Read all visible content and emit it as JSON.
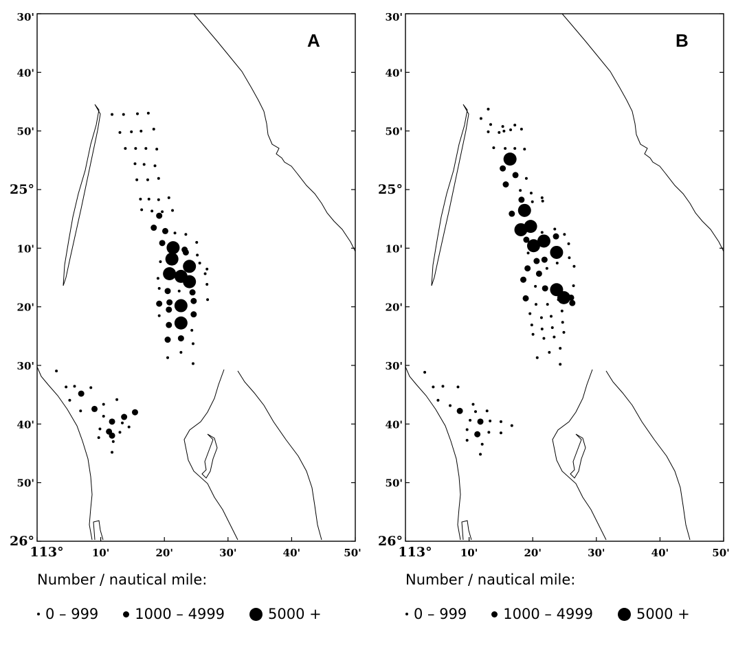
{
  "panels": [
    {
      "id": "A",
      "label": "A",
      "lat_ticks": [
        "30'",
        "40'",
        "50'",
        "25°",
        "10'",
        "20'",
        "30'",
        "40'",
        "50'",
        "26°"
      ],
      "lon_ticks": [
        "113°",
        "10'",
        "20'",
        "30'",
        "40'",
        "50'"
      ],
      "stations": [
        {
          "lon": 3,
          "lat": 37,
          "size": "small"
        },
        {
          "lon": 5.5,
          "lat": 36.8,
          "size": "small"
        },
        {
          "lon": 7,
          "lat": 36.5,
          "size": "small"
        },
        {
          "lon": 8.5,
          "lat": 37.6,
          "size": "medium"
        },
        {
          "lon": 11,
          "lat": 38,
          "size": "small"
        },
        {
          "lon": 13.5,
          "lat": 38,
          "size": "small"
        },
        {
          "lon": 16,
          "lat": 38,
          "size": "small"
        },
        {
          "lon": 4.5,
          "lat": 37.9,
          "size": "small"
        },
        {
          "lon": 1.5,
          "lat": 31.5,
          "size": "small"
        },
        {
          "lon": 9,
          "lat": 39.8,
          "size": "medium"
        },
        {
          "lon": 12,
          "lat": 39.6,
          "size": "small"
        },
        {
          "lon": 14,
          "lat": 40.5,
          "size": "small"
        },
        {
          "lon": 16,
          "lat": 39.8,
          "size": "medium"
        },
        {
          "lon": 10,
          "lat": 41.5,
          "size": "small"
        },
        {
          "lon": 11.5,
          "lat": 41.8,
          "size": "medium"
        },
        {
          "lon": 14,
          "lat": 41.6,
          "size": "medium"
        },
        {
          "lon": 16.5,
          "lat": 42.8,
          "size": "small"
        },
        {
          "lon": 11,
          "lat": 43.8,
          "size": "small"
        },
        {
          "lon": 12.5,
          "lat": 43.8,
          "size": "medium"
        },
        {
          "lon": 15,
          "lat": 43.2,
          "size": "small"
        },
        {
          "lon": 13,
          "lat": 46.5,
          "size": "small"
        },
        {
          "lon": 12.5,
          "lat": 51.2,
          "size": "small"
        },
        {
          "lon": 15,
          "lat": 51.5,
          "size": "small"
        },
        {
          "lon": 17,
          "lat": 51.8,
          "size": "small"
        },
        {
          "lon": 19,
          "lat": 51.8,
          "size": "small"
        },
        {
          "lon": 21,
          "lat": 51.9,
          "size": "small"
        },
        {
          "lon": 14,
          "lat": 49.6,
          "size": "small"
        },
        {
          "lon": 16,
          "lat": 49.8,
          "size": "small"
        },
        {
          "lon": 18,
          "lat": 49.9,
          "size": "small"
        },
        {
          "lon": 20,
          "lat": 50.2,
          "size": "small"
        },
        {
          "lon": 15,
          "lat": 47.5,
          "size": "small"
        },
        {
          "lon": 17.5,
          "lat": 47.6,
          "size": "small"
        },
        {
          "lon": 19.5,
          "lat": 47.7,
          "size": "small"
        },
        {
          "lon": 22,
          "lat": 47.8,
          "size": "small"
        },
        {
          "lon": 16.5,
          "lat": 45.2,
          "size": "small"
        },
        {
          "lon": 18.5,
          "lat": 45.4,
          "size": "small"
        },
        {
          "lon": 20.5,
          "lat": 45.5,
          "size": "small"
        },
        {
          "lon": 17,
          "lat": 43,
          "size": "small"
        },
        {
          "lon": 19.5,
          "lat": 43.2,
          "size": "small"
        },
        {
          "lon": 21.5,
          "lat": 43.4,
          "size": "small"
        },
        {
          "lon": 18.5,
          "lat": 41,
          "size": "small"
        },
        {
          "lon": 21,
          "lat": 41.2,
          "size": "small"
        },
        {
          "lon": 23,
          "lat": 41.5,
          "size": "small"
        },
        {
          "lon": 20,
          "lat": 39.2,
          "size": "small"
        },
        {
          "lon": 22,
          "lat": 39.4,
          "size": "small"
        },
        {
          "lon": 24,
          "lat": 39.6,
          "size": "small"
        },
        {
          "lon": 21,
          "lat": 37,
          "size": "medium"
        },
        {
          "lon": 23.5,
          "lat": 37.4,
          "size": "small"
        },
        {
          "lon": 25.5,
          "lat": 37.5,
          "size": "small"
        },
        {
          "lon": 19,
          "lat": 36.5,
          "size": "medium"
        },
        {
          "lon": 20.5,
          "lat": 34.3,
          "size": "medium"
        },
        {
          "lon": 22,
          "lat": 36.3,
          "size": "medium"
        },
        {
          "lon": 24,
          "lat": 35.8,
          "size": "small"
        },
        {
          "lon": 27,
          "lat": 35.5,
          "size": "small"
        },
        {
          "lon": 29.5,
          "lat": 35.4,
          "size": "small"
        }
      ]
    },
    {
      "id": "B",
      "label": "B",
      "lat_ticks": [
        "30'",
        "40'",
        "50'",
        "25°",
        "10'",
        "20'",
        "30'",
        "40'",
        "50'",
        "26°"
      ],
      "lon_ticks": [
        "113°",
        "10'",
        "20'",
        "30'",
        "40'",
        "50'"
      ],
      "stations": []
    }
  ],
  "legends": [
    {
      "title": "Number / nautical mile:",
      "items": [
        {
          "label": "0 – 999",
          "size": "small"
        },
        {
          "label": "1000 – 4999",
          "size": "medium"
        },
        {
          "label": "5000 +",
          "size": "large"
        }
      ]
    },
    {
      "title": "Number / nautical mile:",
      "items": [
        {
          "label": "0 – 999",
          "size": "small"
        },
        {
          "label": "1000 – 4999",
          "size": "medium"
        },
        {
          "label": "5000 +",
          "size": "large"
        }
      ]
    }
  ]
}
